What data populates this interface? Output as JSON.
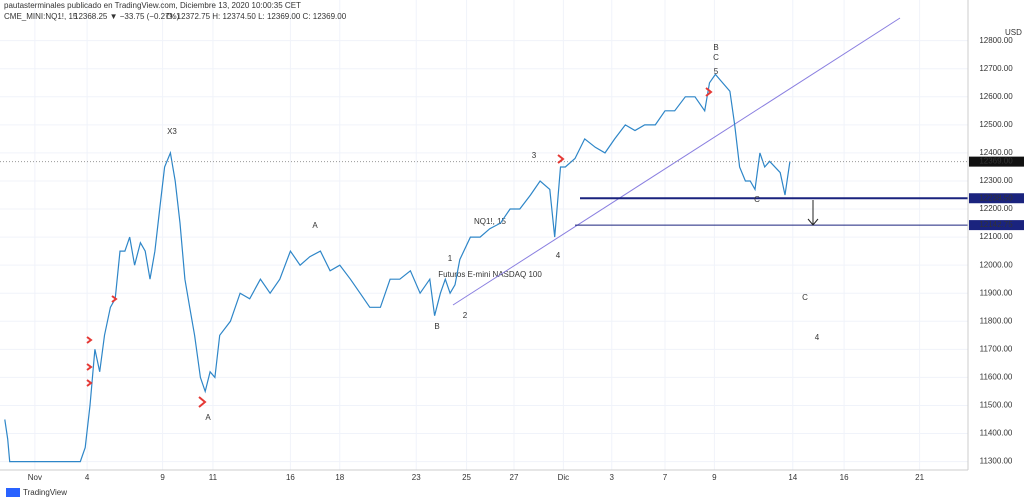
{
  "header": {
    "publisher": "pautasterminales publicado en TradingView.com, Diciembre 13, 2020 10:00:35 CET",
    "symbol": "CME_MINI:NQ1!, 15",
    "quote": "12368.25 ▼ −33.75 (−0.27%)",
    "ohlc": "O: 12372.75 H: 12374.50 L: 12369.00 C: 12369.00"
  },
  "chart_data": {
    "type": "line",
    "color": "#2e86c8",
    "grid": true,
    "currency": "USD",
    "watermark": [
      "NQ1!, 15",
      "Futuros E-mini NASDAQ 100"
    ],
    "x": [
      0.5,
      0.8,
      1,
      8.3,
      8.8,
      9.3,
      9.8,
      10.3,
      10.8,
      11.4,
      11.9,
      12.4,
      12.9,
      13.4,
      13.9,
      14.5,
      15,
      15.5,
      16,
      16.5,
      17,
      17.6,
      18.1,
      18.6,
      19.1,
      19.6,
      20.1,
      20.7,
      21.2,
      21.7,
      22.2,
      22.7,
      23.8,
      24.8,
      25.8,
      26.9,
      27.9,
      28.9,
      30,
      31,
      32,
      33.1,
      34.1,
      35.1,
      36.2,
      37.2,
      38.2,
      39.3,
      40.3,
      41.3,
      42.4,
      43.4,
      44.4,
      44.9,
      45.5,
      46,
      46.5,
      47,
      47.5,
      48.6,
      49.6,
      50.6,
      51.7,
      52.7,
      53.7,
      54.8,
      55.8,
      56.8,
      57.3,
      57.9,
      58.4,
      59.4,
      60.4,
      61.5,
      62.5,
      63.5,
      64.6,
      65.6,
      66.6,
      67.7,
      68.7,
      69.7,
      70.8,
      71.8,
      72.8,
      73.3,
      73.9,
      74.4,
      75.4,
      75.9,
      76.4,
      77,
      77.5,
      78,
      78.5,
      79,
      79.5,
      80.6,
      81.1,
      81.6
    ],
    "values": [
      11450,
      11380,
      11300,
      11300,
      11350,
      11500,
      11700,
      11620,
      11750,
      11850,
      11880,
      12050,
      12050,
      12100,
      12000,
      12080,
      12050,
      11950,
      12050,
      12200,
      12350,
      12400,
      12300,
      12150,
      11950,
      11850,
      11750,
      11600,
      11550,
      11620,
      11600,
      11750,
      11800,
      11900,
      11880,
      11950,
      11900,
      11950,
      12050,
      12000,
      12030,
      12050,
      11980,
      12000,
      11950,
      11900,
      11850,
      11850,
      11950,
      11950,
      11980,
      11900,
      11950,
      11820,
      11900,
      11950,
      11900,
      11930,
      12020,
      12100,
      12100,
      12130,
      12150,
      12200,
      12200,
      12250,
      12300,
      12270,
      12100,
      12350,
      12350,
      12380,
      12450,
      12420,
      12400,
      12450,
      12500,
      12480,
      12500,
      12500,
      12550,
      12550,
      12600,
      12600,
      12550,
      12650,
      12680,
      12660,
      12620,
      12500,
      12350,
      12300,
      12300,
      12270,
      12400,
      12350,
      12370,
      12330,
      12250,
      12369
    ],
    "xlim": [
      0,
      100
    ],
    "xticks": [
      {
        "value": 3.6,
        "label": "Nov"
      },
      {
        "value": 9,
        "label": "4"
      },
      {
        "value": 16.8,
        "label": "9"
      },
      {
        "value": 22,
        "label": "11"
      },
      {
        "value": 30,
        "label": "16"
      },
      {
        "value": 35.1,
        "label": "18"
      },
      {
        "value": 43,
        "label": "23"
      },
      {
        "value": 48.2,
        "label": "25"
      },
      {
        "value": 53.1,
        "label": "27"
      },
      {
        "value": 58.2,
        "label": "Dic"
      },
      {
        "value": 63.2,
        "label": "3"
      },
      {
        "value": 68.7,
        "label": "7"
      },
      {
        "value": 73.8,
        "label": "9"
      },
      {
        "value": 81.9,
        "label": "14"
      },
      {
        "value": 87.2,
        "label": "16"
      },
      {
        "value": 95,
        "label": "21"
      }
    ],
    "ylim": [
      11270,
      12945
    ],
    "yticks": [
      {
        "value": 11300,
        "label": "11300.00"
      },
      {
        "value": 11400,
        "label": "11400.00"
      },
      {
        "value": 11500,
        "label": "11500.00"
      },
      {
        "value": 11600,
        "label": "11600.00"
      },
      {
        "value": 11700,
        "label": "11700.00"
      },
      {
        "value": 11800,
        "label": "11800.00"
      },
      {
        "value": 11900,
        "label": "11900.00"
      },
      {
        "value": 12000,
        "label": "12000.00"
      },
      {
        "value": 12100,
        "label": "12100.00"
      },
      {
        "value": 12200,
        "label": "12200.00"
      },
      {
        "value": 12300,
        "label": "12300.00"
      },
      {
        "value": 12400,
        "label": "12400.00"
      },
      {
        "value": 12500,
        "label": "12500.00"
      },
      {
        "value": 12600,
        "label": "12600.00"
      },
      {
        "value": 12700,
        "label": "12700.00"
      },
      {
        "value": 12800,
        "label": "12800.00"
      }
    ],
    "last_price": {
      "value": 12369,
      "label": "12369.00"
    },
    "levels": [
      {
        "value": 12238.5,
        "label": "12238.50"
      },
      {
        "value": 12142.75,
        "label": "12142.75"
      }
    ],
    "annotations": [
      "B",
      "C",
      "5",
      "X3",
      "A",
      "C",
      "4",
      "3",
      "4",
      "1",
      "2",
      "B",
      "A",
      "C"
    ]
  },
  "footer": {
    "logo": "TradingView"
  }
}
